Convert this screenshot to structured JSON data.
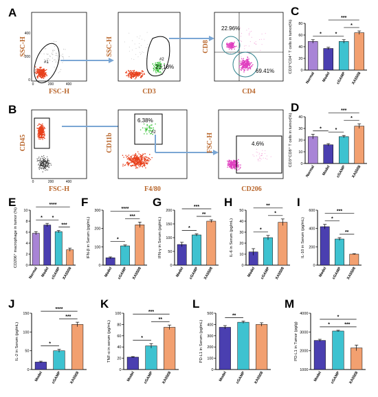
{
  "panel_letters": [
    "A",
    "B",
    "C",
    "D",
    "E",
    "F",
    "G",
    "H",
    "I",
    "J",
    "K",
    "L",
    "M"
  ],
  "colors": {
    "normal": "#a884d6",
    "model": "#4a3fb0",
    "cgamp": "#3ec2d0",
    "xa5508": "#f2a070",
    "axis_text_brown": "#b8652a",
    "arrow": "#7aa6d4"
  },
  "flow": {
    "A": {
      "plot1": {
        "xlabel": "FSC-H",
        "ylabel": "SSC-H",
        "gate": "#1",
        "xticks": [
          "0",
          "200",
          "400"
        ],
        "yticks": [
          "0",
          "200",
          "400"
        ]
      },
      "plot2": {
        "xlabel": "CD3",
        "ylabel": "SSC-H",
        "gate": "#2",
        "pct": "23.18%"
      },
      "plot3": {
        "xlabel": "CD4",
        "ylabel": "CD8",
        "pct_cd8": "22.96%",
        "pct_cd4": "69.41%"
      }
    },
    "B": {
      "plot1": {
        "xlabel": "FSC-H",
        "ylabel": "CD45",
        "xticks": [
          "0",
          "200",
          "400"
        ]
      },
      "plot2": {
        "xlabel": "F4/80",
        "ylabel": "CD11b",
        "gate": "#2",
        "pct": "6.38%"
      },
      "plot3": {
        "xlabel": "CD206",
        "ylabel": "FSC-H",
        "pct": "4.6%"
      }
    }
  },
  "chart_data": [
    {
      "id": "C",
      "type": "bar",
      "categories": [
        "Normal",
        "Model",
        "cGAMP",
        "XA5508"
      ],
      "values": [
        49,
        37,
        49,
        64
      ],
      "errors": [
        3,
        2,
        3,
        3
      ],
      "ylabel": "CD3⁺CD4⁺ T cells in tumor(%)",
      "ylim": [
        0,
        80
      ],
      "yticks": [
        0,
        20,
        40,
        60,
        80
      ],
      "sig": [
        {
          "a": 0,
          "b": 1,
          "text": "*"
        },
        {
          "a": 1,
          "b": 2,
          "text": "*"
        },
        {
          "a": 2,
          "b": 3,
          "text": "*"
        },
        {
          "a": 1,
          "b": 3,
          "text": "***"
        }
      ]
    },
    {
      "id": "D",
      "type": "bar",
      "categories": [
        "Normal",
        "Model",
        "cGAMP",
        "XA5508"
      ],
      "values": [
        23,
        16,
        23,
        32
      ],
      "errors": [
        2,
        1,
        1,
        2
      ],
      "ylabel": "CD3⁺CD8⁺ T cells in tumor(%)",
      "ylim": [
        0,
        40
      ],
      "yticks": [
        0,
        10,
        20,
        30,
        40
      ],
      "sig": [
        {
          "a": 0,
          "b": 1,
          "text": "*"
        },
        {
          "a": 1,
          "b": 2,
          "text": "*"
        },
        {
          "a": 2,
          "b": 3,
          "text": "*"
        },
        {
          "a": 1,
          "b": 3,
          "text": "***"
        }
      ]
    },
    {
      "id": "E",
      "type": "bar",
      "categories": [
        "Normal",
        "Model",
        "cGAMP",
        "XA5508"
      ],
      "values": [
        5.8,
        7.3,
        6.1,
        2.8
      ],
      "errors": [
        0.3,
        0.3,
        0.2,
        0.3
      ],
      "ylabel": "CD206⁺ macrophage in tumor (%)",
      "ylim": [
        0,
        10
      ],
      "yticks": [
        0,
        2,
        4,
        6,
        8,
        10
      ],
      "sig": [
        {
          "a": 0,
          "b": 1,
          "text": "*"
        },
        {
          "a": 1,
          "b": 2,
          "text": "*"
        },
        {
          "a": 2,
          "b": 3,
          "text": "***"
        },
        {
          "a": 0,
          "b": 3,
          "text": "****"
        }
      ]
    },
    {
      "id": "F",
      "type": "bar",
      "categories": [
        "Model",
        "cGAMP",
        "XA5508"
      ],
      "values": [
        40,
        105,
        220
      ],
      "errors": [
        5,
        5,
        15
      ],
      "ylabel": "IFN-β in Serum (pg/mL)",
      "ylim": [
        0,
        300
      ],
      "yticks": [
        0,
        100,
        200,
        300
      ],
      "sig": [
        {
          "a": 0,
          "b": 1,
          "text": "*"
        },
        {
          "a": 1,
          "b": 2,
          "text": "***"
        },
        {
          "a": 0,
          "b": 2,
          "text": "****"
        }
      ]
    },
    {
      "id": "G",
      "type": "bar",
      "categories": [
        "Model",
        "cGAMP",
        "XA5508"
      ],
      "values": [
        75,
        110,
        160
      ],
      "errors": [
        8,
        4,
        5
      ],
      "ylabel": "IFN-γ in Serum (pg/mL)",
      "ylim": [
        0,
        200
      ],
      "yticks": [
        0,
        50,
        100,
        150,
        200
      ],
      "sig": [
        {
          "a": 0,
          "b": 1,
          "text": "*"
        },
        {
          "a": 1,
          "b": 2,
          "text": "**"
        },
        {
          "a": 0,
          "b": 2,
          "text": "***"
        }
      ]
    },
    {
      "id": "H",
      "type": "bar",
      "categories": [
        "Model",
        "cGAMP",
        "XA5508"
      ],
      "values": [
        12,
        25,
        39
      ],
      "errors": [
        3,
        2,
        3
      ],
      "ylabel": "IL-6 in Serum (pg/mL)",
      "ylim": [
        0,
        50
      ],
      "yticks": [
        0,
        10,
        20,
        30,
        40,
        50
      ],
      "sig": [
        {
          "a": 0,
          "b": 1,
          "text": "*"
        },
        {
          "a": 1,
          "b": 2,
          "text": "*"
        },
        {
          "a": 0,
          "b": 2,
          "text": "**"
        }
      ]
    },
    {
      "id": "I",
      "type": "bar",
      "categories": [
        "Model",
        "cGAMP",
        "XA5508"
      ],
      "values": [
        420,
        285,
        120
      ],
      "errors": [
        25,
        15,
        5
      ],
      "ylabel": "IL-10 in Serum (pg/mL)",
      "ylim": [
        0,
        600
      ],
      "yticks": [
        0,
        200,
        400,
        600
      ],
      "sig": [
        {
          "a": 0,
          "b": 1,
          "text": "*"
        },
        {
          "a": 1,
          "b": 2,
          "text": "**"
        },
        {
          "a": 0,
          "b": 2,
          "text": "***"
        }
      ]
    },
    {
      "id": "J",
      "type": "bar",
      "categories": [
        "Model",
        "cGAMP",
        "XA5508"
      ],
      "values": [
        20,
        50,
        120
      ],
      "errors": [
        2,
        4,
        6
      ],
      "ylabel": "IL-2 in Serum (pg/mL)",
      "ylim": [
        0,
        150
      ],
      "yticks": [
        0,
        50,
        100,
        150
      ],
      "sig": [
        {
          "a": 0,
          "b": 1,
          "text": "*"
        },
        {
          "a": 1,
          "b": 2,
          "text": "***"
        },
        {
          "a": 0,
          "b": 2,
          "text": "****"
        }
      ]
    },
    {
      "id": "K",
      "type": "bar",
      "categories": [
        "Model",
        "cGAMP",
        "XA5508"
      ],
      "values": [
        22,
        42,
        75
      ],
      "errors": [
        1,
        4,
        4
      ],
      "ylabel": "TNF-α in serum (pg/mL)",
      "ylim": [
        0,
        100
      ],
      "yticks": [
        0,
        20,
        40,
        60,
        80,
        100
      ],
      "sig": [
        {
          "a": 0,
          "b": 1,
          "text": "*"
        },
        {
          "a": 1,
          "b": 2,
          "text": "**"
        },
        {
          "a": 0,
          "b": 2,
          "text": "***"
        }
      ]
    },
    {
      "id": "L",
      "type": "bar",
      "categories": [
        "Model",
        "cGAMP",
        "XA5508"
      ],
      "values": [
        375,
        420,
        400
      ],
      "errors": [
        15,
        10,
        15
      ],
      "ylabel": "PD-L1 in Serum (pg/mL)",
      "ylim": [
        0,
        500
      ],
      "yticks": [
        0,
        100,
        200,
        300,
        400,
        500
      ],
      "sig": [
        {
          "a": 0,
          "b": 1,
          "text": "**"
        }
      ]
    },
    {
      "id": "M",
      "type": "bar",
      "categories": [
        "Model",
        "cGAMP",
        "XA5508"
      ],
      "values": [
        2550,
        3050,
        2150
      ],
      "errors": [
        60,
        40,
        150
      ],
      "ylabel": "PD-L1 in Tumor (pg/g)",
      "ylim": [
        1000,
        4000
      ],
      "yticks": [
        1000,
        2000,
        3000,
        4000
      ],
      "sig": [
        {
          "a": 0,
          "b": 1,
          "text": "*"
        },
        {
          "a": 1,
          "b": 2,
          "text": "***"
        },
        {
          "a": 0,
          "b": 2,
          "text": "*"
        }
      ]
    }
  ]
}
